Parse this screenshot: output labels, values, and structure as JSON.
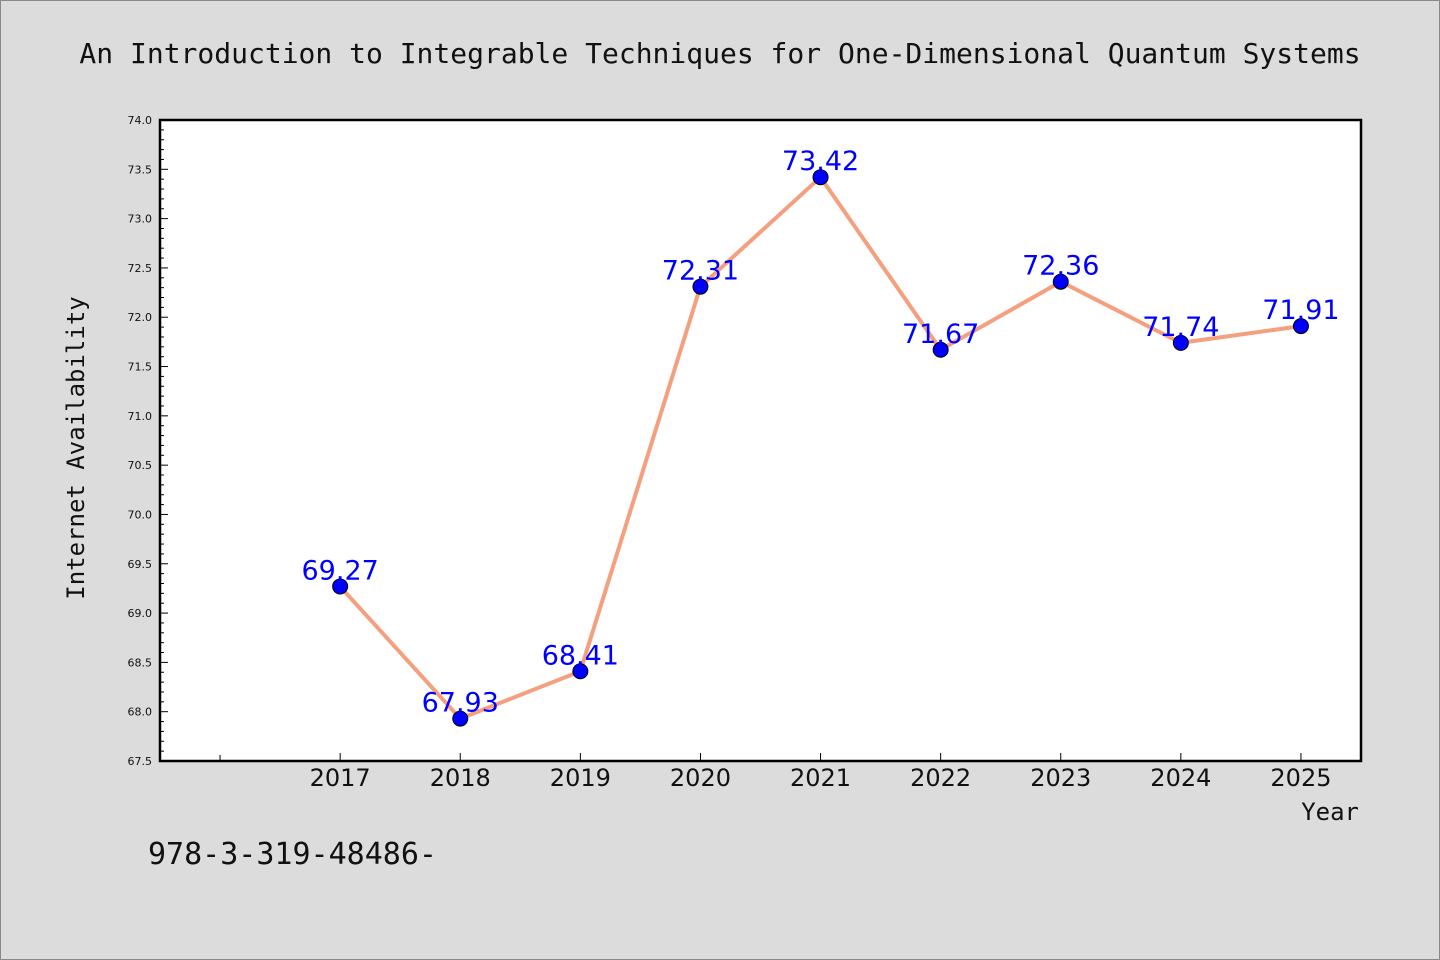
{
  "chart_data": {
    "type": "line",
    "title": "An Introduction to Integrable Techniques for One-Dimensional Quantum Systems",
    "xlabel": "Year",
    "ylabel": "Internet Availability",
    "ylim": [
      67.5,
      74.0
    ],
    "yticks": [
      "67.5",
      "68.0",
      "68.5",
      "69.0",
      "69.5",
      "70.0",
      "70.5",
      "71.0",
      "71.5",
      "72.0",
      "72.5",
      "73.0",
      "73.5",
      "74.0"
    ],
    "x": [
      "2017",
      "2018",
      "2019",
      "2020",
      "2021",
      "2022",
      "2023",
      "2024",
      "2025"
    ],
    "values": [
      69.27,
      67.93,
      68.41,
      72.31,
      73.42,
      71.67,
      72.36,
      71.74,
      71.91
    ],
    "data_labels": [
      "69.27",
      "67.93",
      "68.41",
      "72.31",
      "73.42",
      "71.67",
      "72.36",
      "71.74",
      "71.91"
    ],
    "grid": false,
    "line_color": "#f4a07f",
    "marker_color": "#0000ff",
    "label_color": "#0000ff",
    "background": "#dcdcdc",
    "plot_background": "#ffffff"
  },
  "footer_text": "978-3-319-48486-"
}
